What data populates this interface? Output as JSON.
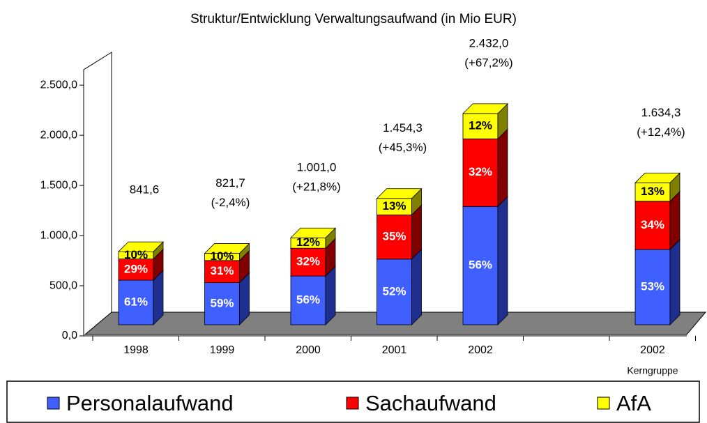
{
  "chart_data": {
    "type": "bar3d_stacked",
    "title": "Struktur/Entwicklung Verwaltungsaufwand (in Mio EUR)",
    "categories": [
      "1998",
      "1999",
      "2000",
      "2001",
      "2002",
      null,
      "2002"
    ],
    "category_sublabels": [
      null,
      null,
      null,
      null,
      null,
      null,
      "Kerngruppe"
    ],
    "total_labels": [
      "841,6",
      "821,7",
      "1.001,0",
      "1.454,3",
      "2.432,0",
      null,
      "1.634,3"
    ],
    "change_labels": [
      null,
      "(-2,4%)",
      "(+21,8%)",
      "(+45,3%)",
      "(+67,2%)",
      null,
      "(+12,4%)"
    ],
    "series": [
      {
        "name": "Personalaufwand",
        "color": "#3f5fff",
        "side_color": "#1f2f8f",
        "values": [
          513.4,
          484.8,
          560.6,
          756.2,
          1361.9,
          null,
          866.2
        ],
        "share_labels": [
          "61%",
          "59%",
          "56%",
          "52%",
          "56%",
          null,
          "53%"
        ]
      },
      {
        "name": "Sachaufwand",
        "color": "#ff0000",
        "side_color": "#800000",
        "values": [
          244.1,
          254.7,
          320.3,
          509.0,
          778.2,
          null,
          555.7
        ],
        "share_labels": [
          "29%",
          "31%",
          "32%",
          "35%",
          "32%",
          null,
          "34%"
        ]
      },
      {
        "name": "AfA",
        "color": "#ffff00",
        "side_color": "#808000",
        "values": [
          84.2,
          82.2,
          120.1,
          189.1,
          291.8,
          null,
          212.5
        ],
        "share_labels": [
          "10%",
          "10%",
          "12%",
          "13%",
          "12%",
          null,
          "13%"
        ]
      }
    ],
    "ylim": [
      0,
      2800
    ],
    "yticks": [
      {
        "value": 0,
        "label": "0,0"
      },
      {
        "value": 500,
        "label": "500,0"
      },
      {
        "value": 1000,
        "label": "1.000,0"
      },
      {
        "value": 1500,
        "label": "1.500,0"
      },
      {
        "value": 2000,
        "label": "2.000,0"
      },
      {
        "value": 2500,
        "label": "2.500,0"
      }
    ],
    "legend": "bottom"
  }
}
